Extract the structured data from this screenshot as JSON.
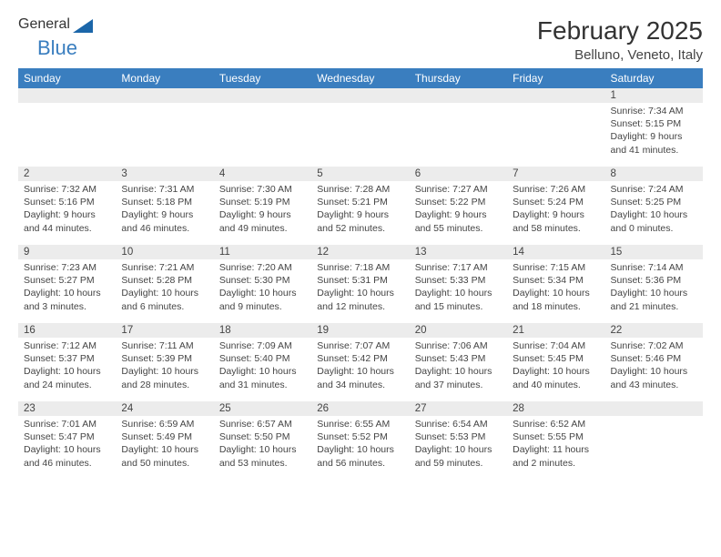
{
  "logo": {
    "text1": "General",
    "text2": "Blue"
  },
  "title": "February 2025",
  "location": "Belluno, Veneto, Italy",
  "colors": {
    "accent": "#3a7ebf",
    "headerText": "#ffffff",
    "dayBarBg": "#ececec",
    "bodyText": "#444444"
  },
  "weekdays": [
    "Sunday",
    "Monday",
    "Tuesday",
    "Wednesday",
    "Thursday",
    "Friday",
    "Saturday"
  ],
  "weeks": [
    [
      null,
      null,
      null,
      null,
      null,
      null,
      {
        "n": "1",
        "sr": "7:34 AM",
        "ss": "5:15 PM",
        "dl": "9 hours and 41 minutes."
      }
    ],
    [
      {
        "n": "2",
        "sr": "7:32 AM",
        "ss": "5:16 PM",
        "dl": "9 hours and 44 minutes."
      },
      {
        "n": "3",
        "sr": "7:31 AM",
        "ss": "5:18 PM",
        "dl": "9 hours and 46 minutes."
      },
      {
        "n": "4",
        "sr": "7:30 AM",
        "ss": "5:19 PM",
        "dl": "9 hours and 49 minutes."
      },
      {
        "n": "5",
        "sr": "7:28 AM",
        "ss": "5:21 PM",
        "dl": "9 hours and 52 minutes."
      },
      {
        "n": "6",
        "sr": "7:27 AM",
        "ss": "5:22 PM",
        "dl": "9 hours and 55 minutes."
      },
      {
        "n": "7",
        "sr": "7:26 AM",
        "ss": "5:24 PM",
        "dl": "9 hours and 58 minutes."
      },
      {
        "n": "8",
        "sr": "7:24 AM",
        "ss": "5:25 PM",
        "dl": "10 hours and 0 minutes."
      }
    ],
    [
      {
        "n": "9",
        "sr": "7:23 AM",
        "ss": "5:27 PM",
        "dl": "10 hours and 3 minutes."
      },
      {
        "n": "10",
        "sr": "7:21 AM",
        "ss": "5:28 PM",
        "dl": "10 hours and 6 minutes."
      },
      {
        "n": "11",
        "sr": "7:20 AM",
        "ss": "5:30 PM",
        "dl": "10 hours and 9 minutes."
      },
      {
        "n": "12",
        "sr": "7:18 AM",
        "ss": "5:31 PM",
        "dl": "10 hours and 12 minutes."
      },
      {
        "n": "13",
        "sr": "7:17 AM",
        "ss": "5:33 PM",
        "dl": "10 hours and 15 minutes."
      },
      {
        "n": "14",
        "sr": "7:15 AM",
        "ss": "5:34 PM",
        "dl": "10 hours and 18 minutes."
      },
      {
        "n": "15",
        "sr": "7:14 AM",
        "ss": "5:36 PM",
        "dl": "10 hours and 21 minutes."
      }
    ],
    [
      {
        "n": "16",
        "sr": "7:12 AM",
        "ss": "5:37 PM",
        "dl": "10 hours and 24 minutes."
      },
      {
        "n": "17",
        "sr": "7:11 AM",
        "ss": "5:39 PM",
        "dl": "10 hours and 28 minutes."
      },
      {
        "n": "18",
        "sr": "7:09 AM",
        "ss": "5:40 PM",
        "dl": "10 hours and 31 minutes."
      },
      {
        "n": "19",
        "sr": "7:07 AM",
        "ss": "5:42 PM",
        "dl": "10 hours and 34 minutes."
      },
      {
        "n": "20",
        "sr": "7:06 AM",
        "ss": "5:43 PM",
        "dl": "10 hours and 37 minutes."
      },
      {
        "n": "21",
        "sr": "7:04 AM",
        "ss": "5:45 PM",
        "dl": "10 hours and 40 minutes."
      },
      {
        "n": "22",
        "sr": "7:02 AM",
        "ss": "5:46 PM",
        "dl": "10 hours and 43 minutes."
      }
    ],
    [
      {
        "n": "23",
        "sr": "7:01 AM",
        "ss": "5:47 PM",
        "dl": "10 hours and 46 minutes."
      },
      {
        "n": "24",
        "sr": "6:59 AM",
        "ss": "5:49 PM",
        "dl": "10 hours and 50 minutes."
      },
      {
        "n": "25",
        "sr": "6:57 AM",
        "ss": "5:50 PM",
        "dl": "10 hours and 53 minutes."
      },
      {
        "n": "26",
        "sr": "6:55 AM",
        "ss": "5:52 PM",
        "dl": "10 hours and 56 minutes."
      },
      {
        "n": "27",
        "sr": "6:54 AM",
        "ss": "5:53 PM",
        "dl": "10 hours and 59 minutes."
      },
      {
        "n": "28",
        "sr": "6:52 AM",
        "ss": "5:55 PM",
        "dl": "11 hours and 2 minutes."
      },
      null
    ]
  ],
  "labels": {
    "sunrise": "Sunrise: ",
    "sunset": "Sunset: ",
    "daylight": "Daylight: "
  }
}
